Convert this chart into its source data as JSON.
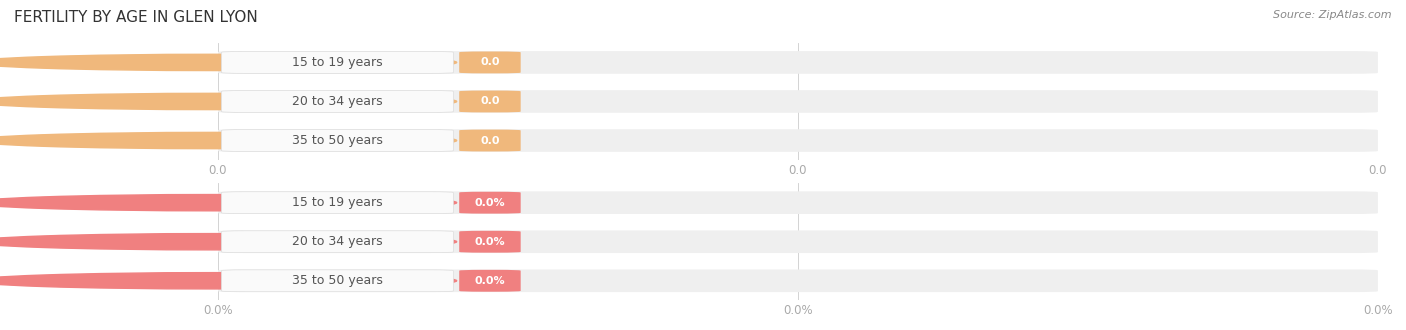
{
  "title": "FERTILITY BY AGE IN GLEN LYON",
  "source_text": "Source: ZipAtlas.com",
  "top_section": {
    "categories": [
      "15 to 19 years",
      "20 to 34 years",
      "35 to 50 years"
    ],
    "values": [
      0.0,
      0.0,
      0.0
    ],
    "bar_bg_color": "#efefef",
    "bar_fill_color": "#f0b87c",
    "pill_bg_color": "#fafafa",
    "value_tag_color": "#f0b87c",
    "x_tick_positions": [
      0.0,
      0.5,
      1.0
    ],
    "x_tick_labels": [
      "0.0",
      "0.0",
      "0.0"
    ]
  },
  "bottom_section": {
    "categories": [
      "15 to 19 years",
      "20 to 34 years",
      "35 to 50 years"
    ],
    "values": [
      0.0,
      0.0,
      0.0
    ],
    "bar_bg_color": "#efefef",
    "bar_fill_color": "#f08080",
    "pill_bg_color": "#fafafa",
    "value_tag_color": "#f08080",
    "x_tick_positions": [
      0.0,
      0.5,
      1.0
    ],
    "x_tick_labels": [
      "0.0%",
      "0.0%",
      "0.0%"
    ]
  },
  "fig_width": 14.06,
  "fig_height": 3.3,
  "bg_color": "#ffffff",
  "label_fontsize": 9,
  "value_fontsize": 8,
  "title_fontsize": 11,
  "tick_fontsize": 8.5,
  "source_fontsize": 8
}
